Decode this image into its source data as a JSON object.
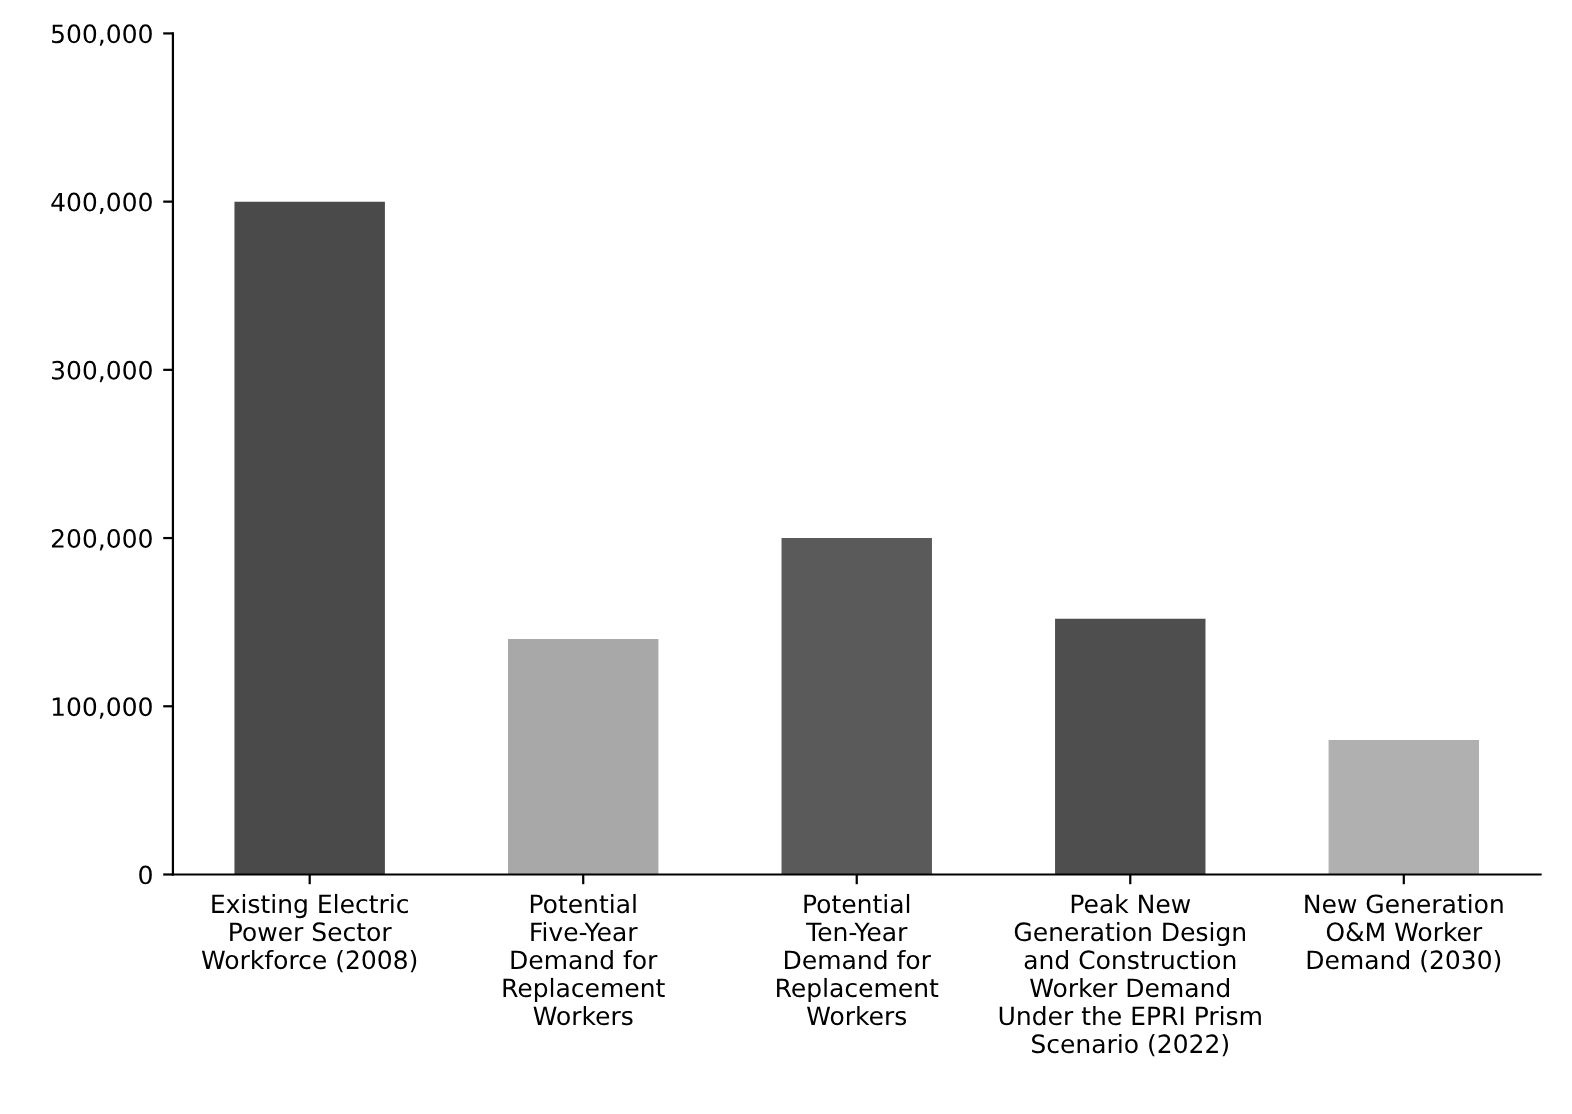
{
  "chart_data": {
    "type": "bar",
    "categories": [
      "Existing Electric\nPower Sector\nWorkforce (2008)",
      "Potential\nFive-Year\nDemand for\nReplacement\nWorkers",
      "Potential\nTen-Year\nDemand for\nReplacement\nWorkers",
      "Peak New\nGeneration Design\nand Construction\nWorker Demand\nUnder the EPRI Prism\nScenario (2022)",
      "New Generation\nO&M Worker\nDemand (2030)"
    ],
    "values": [
      400000,
      140000,
      200000,
      152000,
      80000
    ],
    "colors": [
      "#4a4a4a",
      "#a8a8a8",
      "#5a5a5a",
      "#4e4e4e",
      "#b0b0b0"
    ],
    "ylim": [
      0,
      500000
    ],
    "yticks": [
      {
        "value": 0,
        "label": "0"
      },
      {
        "value": 100000,
        "label": "100,000"
      },
      {
        "value": 200000,
        "label": "200,000"
      },
      {
        "value": 300000,
        "label": "300,000"
      },
      {
        "value": 400000,
        "label": "400,000"
      },
      {
        "value": 500000,
        "label": "500,000"
      }
    ],
    "grid": false
  }
}
